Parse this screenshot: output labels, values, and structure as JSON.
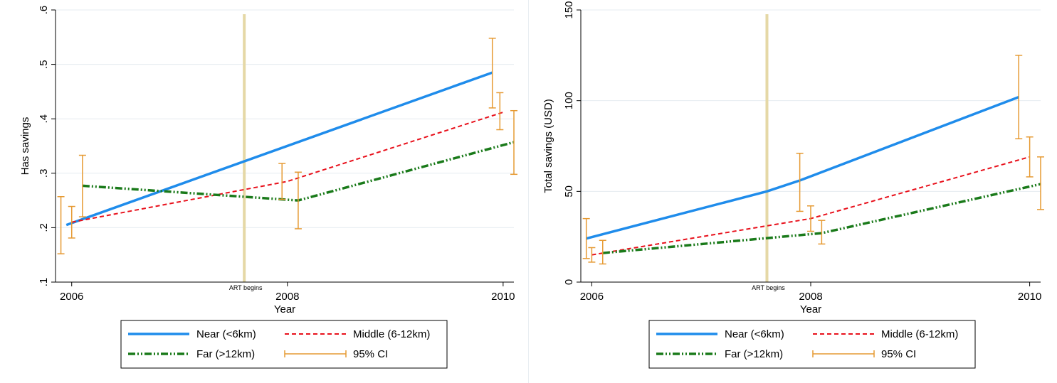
{
  "chart_data": [
    {
      "type": "line",
      "ylabel": "Has savings",
      "xlabel": "Year",
      "ylim": [
        0.1,
        0.6
      ],
      "xlim": [
        2005.85,
        2010.1
      ],
      "yticks": [
        {
          "value": 0.1,
          "label": ".1"
        },
        {
          "value": 0.2,
          "label": ".2"
        },
        {
          "value": 0.3,
          "label": ".3"
        },
        {
          "value": 0.4,
          "label": ".4"
        },
        {
          "value": 0.5,
          "label": ".5"
        },
        {
          "value": 0.6,
          "label": ".6"
        }
      ],
      "xticks": [
        {
          "value": 2006,
          "label": "2006"
        },
        {
          "value": 2008,
          "label": "2008"
        },
        {
          "value": 2010,
          "label": "2010"
        }
      ],
      "annotation": {
        "x": 2007.6,
        "label": "ART begins",
        "color": "#e5d8a6"
      },
      "series": [
        {
          "name": "Near (<6km)",
          "color": "#1f8ceb",
          "dash": "",
          "width": 3.5,
          "points": [
            [
              2005.95,
              0.205
            ],
            [
              2009.9,
              0.485
            ]
          ],
          "ci": [
            [
              2005.9,
              0.152,
              0.257
            ],
            [
              2009.9,
              0.42,
              0.548
            ]
          ]
        },
        {
          "name": "Middle (6-12km)",
          "color": "#e8101b",
          "dash": "6,4",
          "width": 2,
          "points": [
            [
              2006.0,
              0.21
            ],
            [
              2008.0,
              0.285
            ],
            [
              2010.0,
              0.412
            ]
          ],
          "ci": [
            [
              2006.0,
              0.181,
              0.239
            ],
            [
              2007.95,
              0.252,
              0.318
            ],
            [
              2009.97,
              0.38,
              0.448
            ]
          ]
        },
        {
          "name": "Far (>12km)",
          "color": "#1a7a1a",
          "dash": "10,3,2,3,2,3",
          "width": 3.5,
          "points": [
            [
              2006.1,
              0.277
            ],
            [
              2008.1,
              0.25
            ],
            [
              2010.1,
              0.357
            ]
          ],
          "ci": [
            [
              2006.1,
              0.22,
              0.333
            ],
            [
              2008.1,
              0.198,
              0.302
            ],
            [
              2010.1,
              0.298,
              0.415
            ]
          ]
        }
      ],
      "ci_color": "#e69a33",
      "legend": [
        {
          "label": "Near (<6km)",
          "series": 0
        },
        {
          "label": "Middle (6-12km)",
          "series": 1
        },
        {
          "label": "Far (>12km)",
          "series": 2
        },
        {
          "label": "95% CI",
          "series": "ci"
        }
      ]
    },
    {
      "type": "line",
      "ylabel": "Total savings (USD)",
      "xlabel": "Year",
      "ylim": [
        0,
        150
      ],
      "xlim": [
        2005.9,
        2010.1
      ],
      "yticks": [
        {
          "value": 0,
          "label": "0"
        },
        {
          "value": 50,
          "label": "50"
        },
        {
          "value": 100,
          "label": "100"
        },
        {
          "value": 150,
          "label": "150"
        }
      ],
      "xticks": [
        {
          "value": 2006,
          "label": "2006"
        },
        {
          "value": 2008,
          "label": "2008"
        },
        {
          "value": 2010,
          "label": "2010"
        }
      ],
      "annotation": {
        "x": 2007.6,
        "label": "ART begins",
        "color": "#e5d8a6"
      },
      "series": [
        {
          "name": "Near (<6km)",
          "color": "#1f8ceb",
          "dash": "",
          "width": 3.5,
          "points": [
            [
              2005.95,
              24
            ],
            [
              2007.6,
              50
            ],
            [
              2007.9,
              56
            ],
            [
              2009.9,
              102
            ]
          ],
          "ci": [
            [
              2005.95,
              13,
              35
            ],
            [
              2007.9,
              39,
              71
            ],
            [
              2009.9,
              79,
              125
            ]
          ]
        },
        {
          "name": "Middle (6-12km)",
          "color": "#e8101b",
          "dash": "6,4",
          "width": 2,
          "points": [
            [
              2006.0,
              15
            ],
            [
              2008.0,
              35
            ],
            [
              2010.0,
              69
            ]
          ],
          "ci": [
            [
              2006.0,
              11,
              19
            ],
            [
              2008.0,
              28,
              42
            ],
            [
              2010.0,
              58,
              80
            ]
          ]
        },
        {
          "name": "Far (>12km)",
          "color": "#1a7a1a",
          "dash": "10,3,2,3,2,3",
          "width": 3.5,
          "points": [
            [
              2006.1,
              16
            ],
            [
              2008.1,
              27
            ],
            [
              2010.1,
              54
            ]
          ],
          "ci": [
            [
              2006.1,
              10,
              23
            ],
            [
              2008.1,
              21,
              34
            ],
            [
              2010.1,
              40,
              69
            ]
          ]
        }
      ],
      "ci_color": "#e69a33",
      "legend": [
        {
          "label": "Near (<6km)",
          "series": 0
        },
        {
          "label": "Middle (6-12km)",
          "series": 1
        },
        {
          "label": "Far (>12km)",
          "series": 2
        },
        {
          "label": "95% CI",
          "series": "ci"
        }
      ]
    }
  ]
}
